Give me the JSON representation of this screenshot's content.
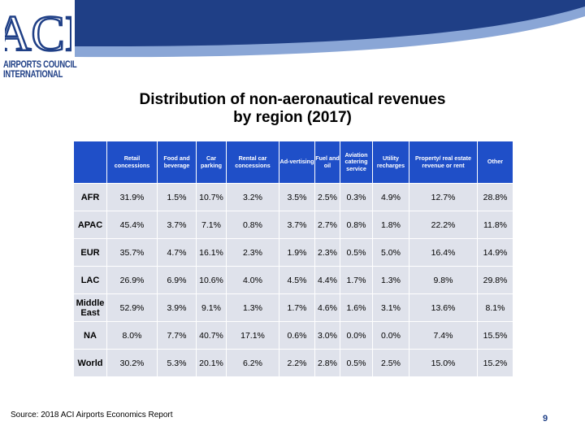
{
  "logo": {
    "mark": "ACI",
    "line1": "AIRPORTS COUNCIL",
    "line2": "INTERNATIONAL"
  },
  "title": {
    "line1": "Distribution of non-aeronautical revenues",
    "line2": "by region (2017)"
  },
  "table": {
    "headers": [
      "",
      "Retail concessions",
      "Food and beverage",
      "Car parking",
      "Rental car concessions",
      "Ad-vertising",
      "Fuel and oil",
      "Aviation catering service",
      "Utility recharges",
      "Property/ real estate revenue or rent",
      "Other"
    ],
    "rows": [
      {
        "region": "AFR",
        "values": [
          "31.9%",
          "1.5%",
          "10.7%",
          "3.2%",
          "3.5%",
          "2.5%",
          "0.3%",
          "4.9%",
          "12.7%",
          "28.8%"
        ]
      },
      {
        "region": "APAC",
        "values": [
          "45.4%",
          "3.7%",
          "7.1%",
          "0.8%",
          "3.7%",
          "2.7%",
          "0.8%",
          "1.8%",
          "22.2%",
          "11.8%"
        ]
      },
      {
        "region": "EUR",
        "values": [
          "35.7%",
          "4.7%",
          "16.1%",
          "2.3%",
          "1.9%",
          "2.3%",
          "0.5%",
          "5.0%",
          "16.4%",
          "14.9%"
        ]
      },
      {
        "region": "LAC",
        "values": [
          "26.9%",
          "6.9%",
          "10.6%",
          "4.0%",
          "4.5%",
          "4.4%",
          "1.7%",
          "1.3%",
          "9.8%",
          "29.8%"
        ]
      },
      {
        "region": "Middle East",
        "values": [
          "52.9%",
          "3.9%",
          "9.1%",
          "1.3%",
          "1.7%",
          "4.6%",
          "1.6%",
          "3.1%",
          "13.6%",
          "8.1%"
        ]
      },
      {
        "region": "NA",
        "values": [
          "8.0%",
          "7.7%",
          "40.7%",
          "17.1%",
          "0.6%",
          "3.0%",
          "0.0%",
          "0.0%",
          "7.4%",
          "15.5%"
        ]
      },
      {
        "region": "World",
        "values": [
          "30.2%",
          "5.3%",
          "20.1%",
          "6.2%",
          "2.2%",
          "2.8%",
          "0.5%",
          "2.5%",
          "15.0%",
          "15.2%"
        ]
      }
    ]
  },
  "footer": {
    "source": "Source: 2018 ACI Airports Economics Report",
    "page_number": "9"
  },
  "colors": {
    "header_fill": "#1f4fc8",
    "body_fill": "#dfe2eb",
    "banner_dark": "#1f3f86",
    "banner_light": "#8aa6d6",
    "logo_blue": "#1f3f86"
  }
}
